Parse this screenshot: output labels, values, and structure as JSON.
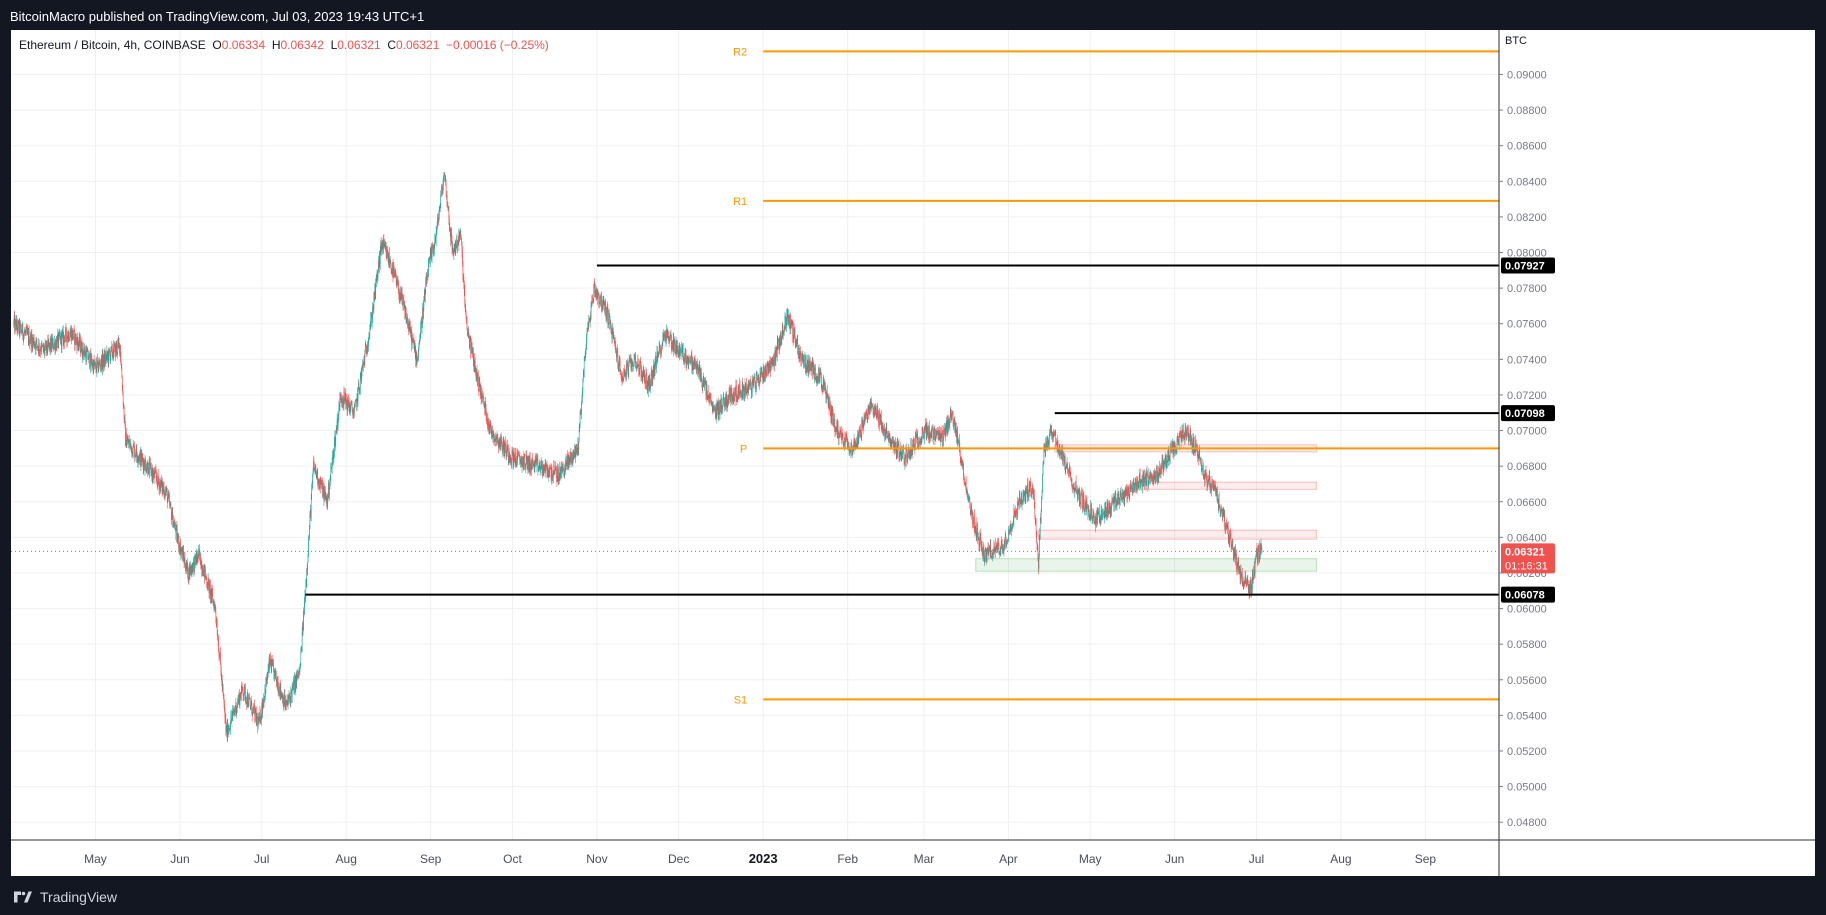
{
  "header": {
    "published": "BitcoinMacro published on TradingView.com, Jul 03, 2023 19:43 UTC+1"
  },
  "legend": {
    "symbol": "Ethereum / Bitcoin, 4h, COINBASE",
    "o_label": "O",
    "o": "0.06334",
    "h_label": "H",
    "h": "0.06342",
    "l_label": "L",
    "l": "0.06321",
    "c_label": "C",
    "c": "0.06321",
    "change": "−0.00016 (−0.25%)"
  },
  "footer": {
    "brand": "TradingView"
  },
  "colors": {
    "up": "#26a69a",
    "down": "#ef5350",
    "pivot": "#ff9800",
    "level": "#000000",
    "grid": "#eef0f3",
    "price_line": "#ef5350"
  },
  "chart_data": {
    "type": "candlestick",
    "symbol": "Ethereum / Bitcoin",
    "interval": "4h",
    "exchange": "COINBASE",
    "currency_label": "BTC",
    "ylim": [
      0.047,
      0.0925
    ],
    "y_ticks": [
      "0.09000",
      "0.08800",
      "0.08600",
      "0.08400",
      "0.08200",
      "0.08000",
      "0.07800",
      "0.07600",
      "0.07400",
      "0.07200",
      "0.07000",
      "0.06800",
      "0.06600",
      "0.06400",
      "0.06200",
      "0.06000",
      "0.05800",
      "0.05600",
      "0.05400",
      "0.05200",
      "0.05000",
      "0.04800"
    ],
    "x_ticks": [
      "May",
      "Jun",
      "Jul",
      "Aug",
      "Sep",
      "Oct",
      "Nov",
      "Dec",
      "2023",
      "Feb",
      "Mar",
      "Apr",
      "May",
      "Jun",
      "Jul",
      "Aug",
      "Sep"
    ],
    "price_path": [
      {
        "d": "2022-04-01",
        "p": 0.076
      },
      {
        "d": "2022-04-12",
        "p": 0.0745
      },
      {
        "d": "2022-04-22",
        "p": 0.0755
      },
      {
        "d": "2022-05-01",
        "p": 0.0735
      },
      {
        "d": "2022-05-10",
        "p": 0.0748
      },
      {
        "d": "2022-05-12",
        "p": 0.0695
      },
      {
        "d": "2022-05-20",
        "p": 0.068
      },
      {
        "d": "2022-05-27",
        "p": 0.0665
      },
      {
        "d": "2022-05-31",
        "p": 0.064
      },
      {
        "d": "2022-06-04",
        "p": 0.062
      },
      {
        "d": "2022-06-08",
        "p": 0.063
      },
      {
        "d": "2022-06-14",
        "p": 0.06
      },
      {
        "d": "2022-06-18",
        "p": 0.053
      },
      {
        "d": "2022-06-24",
        "p": 0.0555
      },
      {
        "d": "2022-06-30",
        "p": 0.0535
      },
      {
        "d": "2022-07-04",
        "p": 0.057
      },
      {
        "d": "2022-07-10",
        "p": 0.0545
      },
      {
        "d": "2022-07-15",
        "p": 0.0565
      },
      {
        "d": "2022-07-17",
        "p": 0.061
      },
      {
        "d": "2022-07-20",
        "p": 0.068
      },
      {
        "d": "2022-07-25",
        "p": 0.066
      },
      {
        "d": "2022-07-30",
        "p": 0.072
      },
      {
        "d": "2022-08-04",
        "p": 0.071
      },
      {
        "d": "2022-08-10",
        "p": 0.076
      },
      {
        "d": "2022-08-14",
        "p": 0.0805
      },
      {
        "d": "2022-08-17",
        "p": 0.0795
      },
      {
        "d": "2022-08-22",
        "p": 0.077
      },
      {
        "d": "2022-08-27",
        "p": 0.074
      },
      {
        "d": "2022-08-31",
        "p": 0.079
      },
      {
        "d": "2022-09-03",
        "p": 0.081
      },
      {
        "d": "2022-09-06",
        "p": 0.0845
      },
      {
        "d": "2022-09-09",
        "p": 0.08
      },
      {
        "d": "2022-09-12",
        "p": 0.081
      },
      {
        "d": "2022-09-14",
        "p": 0.076
      },
      {
        "d": "2022-09-18",
        "p": 0.073
      },
      {
        "d": "2022-09-23",
        "p": 0.07
      },
      {
        "d": "2022-10-01",
        "p": 0.0685
      },
      {
        "d": "2022-10-10",
        "p": 0.068
      },
      {
        "d": "2022-10-18",
        "p": 0.0675
      },
      {
        "d": "2022-10-25",
        "p": 0.069
      },
      {
        "d": "2022-10-28",
        "p": 0.075
      },
      {
        "d": "2022-10-31",
        "p": 0.078
      },
      {
        "d": "2022-11-05",
        "p": 0.0765
      },
      {
        "d": "2022-11-08",
        "p": 0.0745
      },
      {
        "d": "2022-11-10",
        "p": 0.073
      },
      {
        "d": "2022-11-15",
        "p": 0.074
      },
      {
        "d": "2022-11-20",
        "p": 0.0725
      },
      {
        "d": "2022-11-26",
        "p": 0.0755
      },
      {
        "d": "2022-12-01",
        "p": 0.0745
      },
      {
        "d": "2022-12-08",
        "p": 0.0735
      },
      {
        "d": "2022-12-14",
        "p": 0.071
      },
      {
        "d": "2022-12-20",
        "p": 0.072
      },
      {
        "d": "2022-12-28",
        "p": 0.0725
      },
      {
        "d": "2023-01-05",
        "p": 0.074
      },
      {
        "d": "2023-01-10",
        "p": 0.0765
      },
      {
        "d": "2023-01-15",
        "p": 0.074
      },
      {
        "d": "2023-01-22",
        "p": 0.073
      },
      {
        "d": "2023-01-28",
        "p": 0.07
      },
      {
        "d": "2023-02-03",
        "p": 0.069
      },
      {
        "d": "2023-02-10",
        "p": 0.0715
      },
      {
        "d": "2023-02-16",
        "p": 0.0695
      },
      {
        "d": "2023-02-22",
        "p": 0.0685
      },
      {
        "d": "2023-03-01",
        "p": 0.07
      },
      {
        "d": "2023-03-08",
        "p": 0.0695
      },
      {
        "d": "2023-03-11",
        "p": 0.071
      },
      {
        "d": "2023-03-14",
        "p": 0.069
      },
      {
        "d": "2023-03-18",
        "p": 0.0655
      },
      {
        "d": "2023-03-23",
        "p": 0.063
      },
      {
        "d": "2023-03-30",
        "p": 0.0635
      },
      {
        "d": "2023-04-05",
        "p": 0.066
      },
      {
        "d": "2023-04-10",
        "p": 0.067
      },
      {
        "d": "2023-04-12",
        "p": 0.0625
      },
      {
        "d": "2023-04-14",
        "p": 0.069
      },
      {
        "d": "2023-04-17",
        "p": 0.07
      },
      {
        "d": "2023-04-22",
        "p": 0.068
      },
      {
        "d": "2023-04-28",
        "p": 0.066
      },
      {
        "d": "2023-05-03",
        "p": 0.065
      },
      {
        "d": "2023-05-10",
        "p": 0.066
      },
      {
        "d": "2023-05-18",
        "p": 0.067
      },
      {
        "d": "2023-05-25",
        "p": 0.0675
      },
      {
        "d": "2023-06-01",
        "p": 0.069
      },
      {
        "d": "2023-06-05",
        "p": 0.07
      },
      {
        "d": "2023-06-09",
        "p": 0.069
      },
      {
        "d": "2023-06-12",
        "p": 0.0675
      },
      {
        "d": "2023-06-16",
        "p": 0.0665
      },
      {
        "d": "2023-06-20",
        "p": 0.0645
      },
      {
        "d": "2023-06-23",
        "p": 0.063
      },
      {
        "d": "2023-06-26",
        "p": 0.0615
      },
      {
        "d": "2023-06-29",
        "p": 0.0612
      },
      {
        "d": "2023-07-01",
        "p": 0.063
      },
      {
        "d": "2023-07-03",
        "p": 0.0632
      }
    ],
    "pivot_levels": [
      {
        "label": "R2",
        "value": 0.0913
      },
      {
        "label": "R1",
        "value": 0.0829
      },
      {
        "label": "P",
        "value": 0.069
      },
      {
        "label": "S1",
        "value": 0.0549
      }
    ],
    "pivot_start": "2023-01-01",
    "horizontal_levels": [
      {
        "value": 0.07927,
        "label": "0.07927",
        "from": "2022-11-01"
      },
      {
        "value": 0.07098,
        "label": "0.07098",
        "from": "2023-04-18"
      },
      {
        "value": 0.06078,
        "label": "0.06078",
        "from": "2022-07-17"
      }
    ],
    "zones": [
      {
        "type": "supply",
        "from": "2023-04-18",
        "to": "2023-07-23",
        "top": 0.0692,
        "bottom": 0.0688
      },
      {
        "type": "supply",
        "from": "2023-05-20",
        "to": "2023-07-23",
        "top": 0.0671,
        "bottom": 0.0667
      },
      {
        "type": "supply",
        "from": "2023-04-12",
        "to": "2023-07-23",
        "top": 0.0644,
        "bottom": 0.0639
      },
      {
        "type": "demand",
        "from": "2023-03-20",
        "to": "2023-07-23",
        "top": 0.0628,
        "bottom": 0.0621
      }
    ],
    "last_price": {
      "value": 0.06321,
      "label": "0.06321",
      "countdown": "01:16:31"
    },
    "x_range": [
      "2022-03-31",
      "2023-09-28"
    ]
  }
}
